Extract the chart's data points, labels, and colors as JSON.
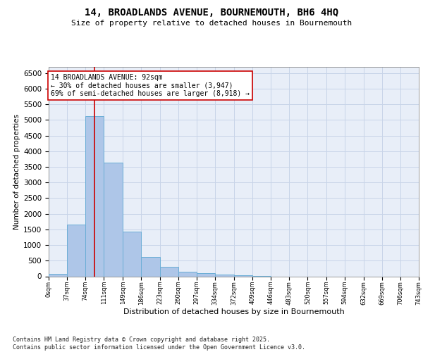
{
  "title_line1": "14, BROADLANDS AVENUE, BOURNEMOUTH, BH6 4HQ",
  "title_line2": "Size of property relative to detached houses in Bournemouth",
  "xlabel": "Distribution of detached houses by size in Bournemouth",
  "ylabel": "Number of detached properties",
  "footer": "Contains HM Land Registry data © Crown copyright and database right 2025.\nContains public sector information licensed under the Open Government Licence v3.0.",
  "bin_edges": [
    0,
    37,
    74,
    111,
    149,
    186,
    223,
    260,
    297,
    334,
    372,
    409,
    446,
    483,
    520,
    557,
    594,
    632,
    669,
    706,
    743
  ],
  "bar_heights": [
    75,
    1650,
    5120,
    3630,
    1420,
    615,
    315,
    155,
    100,
    55,
    35,
    10,
    0,
    0,
    0,
    0,
    0,
    0,
    0,
    0
  ],
  "bar_color": "#aec6e8",
  "bar_edge_color": "#6baed6",
  "property_size": 92,
  "red_line_color": "#cc0000",
  "annotation_line1": "14 BROADLANDS AVENUE: 92sqm",
  "annotation_line2": "← 30% of detached houses are smaller (3,947)",
  "annotation_line3": "69% of semi-detached houses are larger (8,918) →",
  "annotation_box_edgecolor": "#cc0000",
  "ylim": [
    0,
    6700
  ],
  "yticks": [
    0,
    500,
    1000,
    1500,
    2000,
    2500,
    3000,
    3500,
    4000,
    4500,
    5000,
    5500,
    6000,
    6500
  ],
  "grid_color": "#c8d4e8",
  "background_color": "#e8eef8",
  "tick_labels": [
    "0sqm",
    "37sqm",
    "74sqm",
    "111sqm",
    "149sqm",
    "186sqm",
    "223sqm",
    "260sqm",
    "297sqm",
    "334sqm",
    "372sqm",
    "409sqm",
    "446sqm",
    "483sqm",
    "520sqm",
    "557sqm",
    "594sqm",
    "632sqm",
    "669sqm",
    "706sqm",
    "743sqm"
  ],
  "title1_fontsize": 10,
  "title2_fontsize": 8,
  "ylabel_fontsize": 7.5,
  "xlabel_fontsize": 8,
  "ytick_fontsize": 7.5,
  "xtick_fontsize": 6,
  "annotation_fontsize": 7,
  "footer_fontsize": 6
}
